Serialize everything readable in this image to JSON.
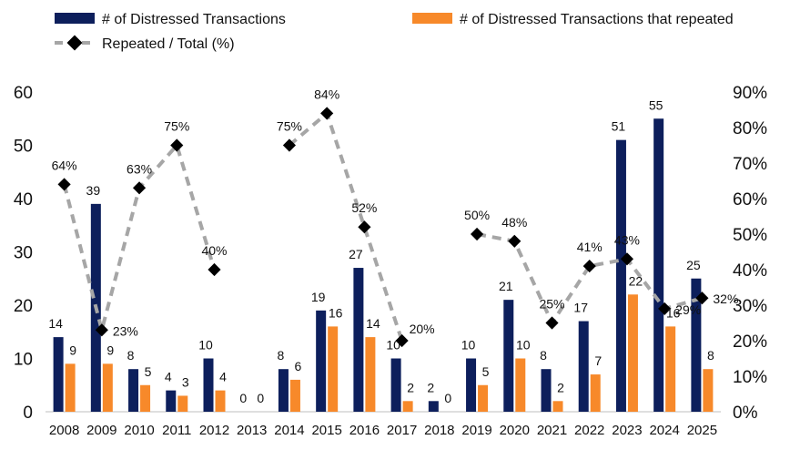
{
  "chart_data": {
    "type": "bar",
    "categories": [
      "2008",
      "2009",
      "2010",
      "2011",
      "2012",
      "2013",
      "2014",
      "2015",
      "2016",
      "2017",
      "2018",
      "2019",
      "2020",
      "2021",
      "2022",
      "2023",
      "2024",
      "2025"
    ],
    "series": [
      {
        "name": "# of Distressed Transactions",
        "type": "bar",
        "axis": "left",
        "color": "#0d1f5c",
        "values": [
          14,
          39,
          8,
          4,
          10,
          0,
          8,
          19,
          27,
          10,
          2,
          10,
          21,
          8,
          17,
          51,
          55,
          25
        ],
        "labels": [
          "14",
          "39",
          "8",
          "4",
          "10",
          "0",
          "8",
          "19",
          "27",
          "10",
          "2",
          "10",
          "21",
          "8",
          "17",
          "51",
          "55",
          "25"
        ]
      },
      {
        "name": "# of Distressed Transactions that repeated",
        "type": "bar",
        "axis": "left",
        "color": "#f7892a",
        "values": [
          9,
          9,
          5,
          3,
          4,
          0,
          6,
          16,
          14,
          2,
          0,
          5,
          10,
          2,
          7,
          22,
          16,
          8
        ],
        "labels": [
          "9",
          "9",
          "5",
          "3",
          "4",
          "0",
          "6",
          "16",
          "14",
          "2",
          "0",
          "5",
          "10",
          "2",
          "7",
          "22",
          "16",
          "8"
        ]
      },
      {
        "name": "Repeated / Total (%)",
        "type": "line",
        "axis": "right",
        "color": "#a6a6a6",
        "segments": [
          [
            0,
            4
          ],
          [
            6,
            9
          ],
          [
            11,
            17
          ]
        ],
        "points": [
          {
            "i": 0,
            "v": 64,
            "label": "64%"
          },
          {
            "i": 1,
            "v": 23,
            "label": "23%"
          },
          {
            "i": 2,
            "v": 63,
            "label": "63%"
          },
          {
            "i": 3,
            "v": 75,
            "label": "75%"
          },
          {
            "i": 4,
            "v": 40,
            "label": "40%"
          },
          {
            "i": 6,
            "v": 75,
            "label": "75%"
          },
          {
            "i": 7,
            "v": 84,
            "label": "84%"
          },
          {
            "i": 8,
            "v": 52,
            "label": "52%"
          },
          {
            "i": 9,
            "v": 20,
            "label": "20%"
          },
          {
            "i": 11,
            "v": 50,
            "label": "50%"
          },
          {
            "i": 12,
            "v": 48,
            "label": "48%"
          },
          {
            "i": 13,
            "v": 25,
            "label": "25%"
          },
          {
            "i": 14,
            "v": 41,
            "label": "41%"
          },
          {
            "i": 15,
            "v": 43,
            "label": "43%"
          },
          {
            "i": 16,
            "v": 29,
            "label": "29%"
          },
          {
            "i": 17,
            "v": 32,
            "label": "32%"
          }
        ]
      }
    ],
    "left_axis": {
      "min": 0,
      "max": 60,
      "ticks": [
        0,
        10,
        20,
        30,
        40,
        50,
        60
      ],
      "tick_labels": [
        "0",
        "10",
        "20",
        "30",
        "40",
        "50",
        "60"
      ]
    },
    "right_axis": {
      "min": 0,
      "max": 90,
      "ticks": [
        0,
        10,
        20,
        30,
        40,
        50,
        60,
        70,
        80,
        90
      ],
      "tick_labels": [
        "0%",
        "10%",
        "20%",
        "30%",
        "40%",
        "50%",
        "60%",
        "70%",
        "80%",
        "90%"
      ]
    },
    "legend": {
      "position": "top",
      "entries": [
        "# of Distressed Transactions",
        "# of Distressed Transactions that repeated",
        "Repeated / Total (%)"
      ]
    },
    "title": "",
    "xlabel": "",
    "ylabel": "",
    "grid": false
  }
}
